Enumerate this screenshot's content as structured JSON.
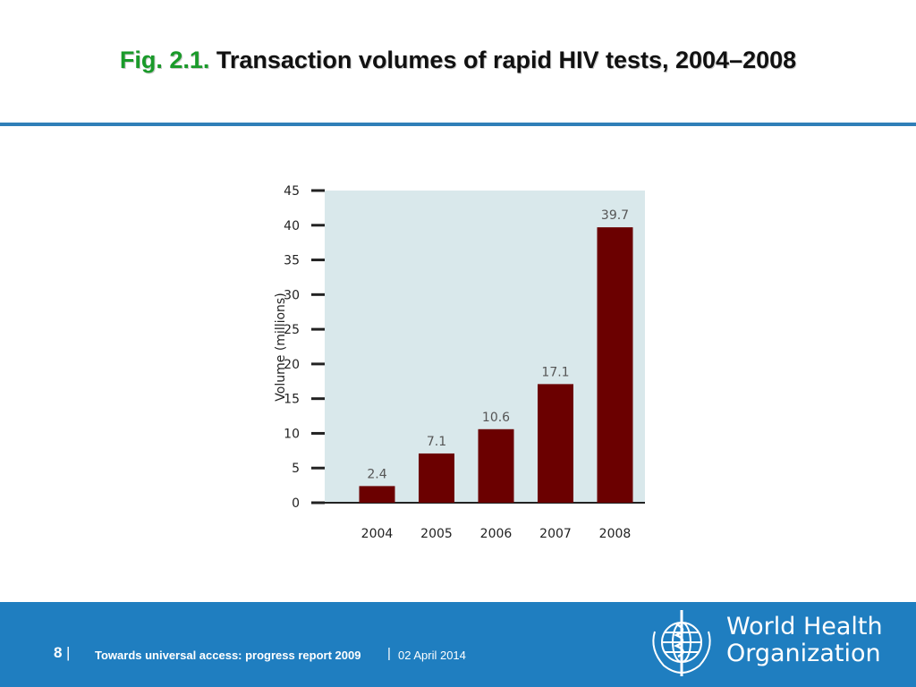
{
  "header": {
    "title_prefix": "Fig. 2.1.",
    "title_text": "Transaction volumes of rapid HIV tests, 2004–2008"
  },
  "chart_data": {
    "type": "bar",
    "categories": [
      "2004",
      "2005",
      "2006",
      "2007",
      "2008"
    ],
    "values": [
      2.4,
      7.1,
      10.6,
      17.1,
      39.7
    ],
    "data_labels": [
      "2.4",
      "7.1",
      "10.6",
      "17.1",
      "39.7"
    ],
    "ylabel": "Volume (millions)",
    "ylim": [
      0,
      45
    ],
    "yticks": [
      0,
      5,
      10,
      15,
      20,
      25,
      30,
      35,
      40,
      45
    ],
    "bar_color": "#6b0000",
    "plot_background": "#d9e8eb",
    "grid": false
  },
  "footer": {
    "page_number": "8",
    "separator": "|",
    "report_title": "Towards universal access: progress report 2009",
    "date": "02 April 2014",
    "org_name_line1": "World Health",
    "org_name_line2": "Organization",
    "background_color": "#1f7ec0"
  }
}
